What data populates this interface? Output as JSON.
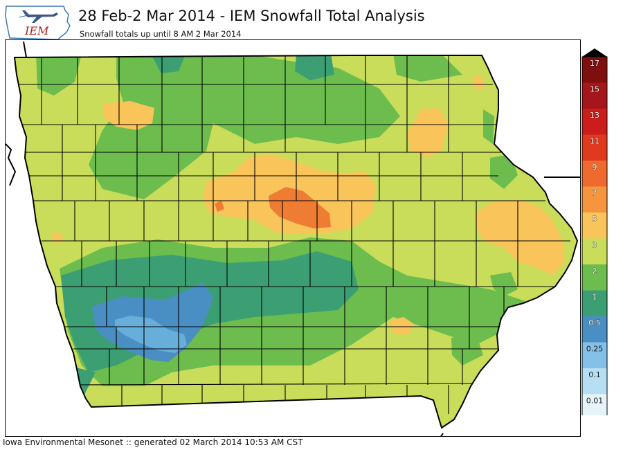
{
  "header": {
    "title": "28 Feb-2 Mar 2014 - IEM Snowfall Total Analysis",
    "subtitle": "Snowfall totals up until 8 AM 2 Mar 2014"
  },
  "logo": {
    "text": "IEM",
    "icon": "iowa-state-outline-with-airplane"
  },
  "footer": {
    "text": "Iowa Environmental Mesonet :: generated 02 March 2014 10:53 AM CST"
  },
  "legend": {
    "labels": [
      "17",
      "15",
      "13",
      "11",
      "9",
      "7",
      "5",
      "3",
      "2",
      "1",
      "0.5",
      "0.25",
      "0.1",
      "0.01"
    ],
    "colors": [
      "#7f0e0e",
      "#a5161a",
      "#cc1c1c",
      "#e03a1e",
      "#ef6a2e",
      "#f5963e",
      "#f9c55b",
      "#c9dd5a",
      "#6cbd4e",
      "#3c9f73",
      "#4a8fc4",
      "#84c0e8",
      "#b6dff4",
      "#e6f4fa"
    ]
  },
  "map": {
    "state": "Iowa",
    "region_colors": {
      "lt_0_5": "#67aedb",
      "0_5_to_1": "#4a8fc4",
      "1_to_2": "#3c9f73",
      "2_to_3": "#6cbd4e",
      "3_to_5": "#c9dd5a",
      "5_to_7": "#f9c55b",
      "7_to_9": "#ef7c33"
    }
  }
}
